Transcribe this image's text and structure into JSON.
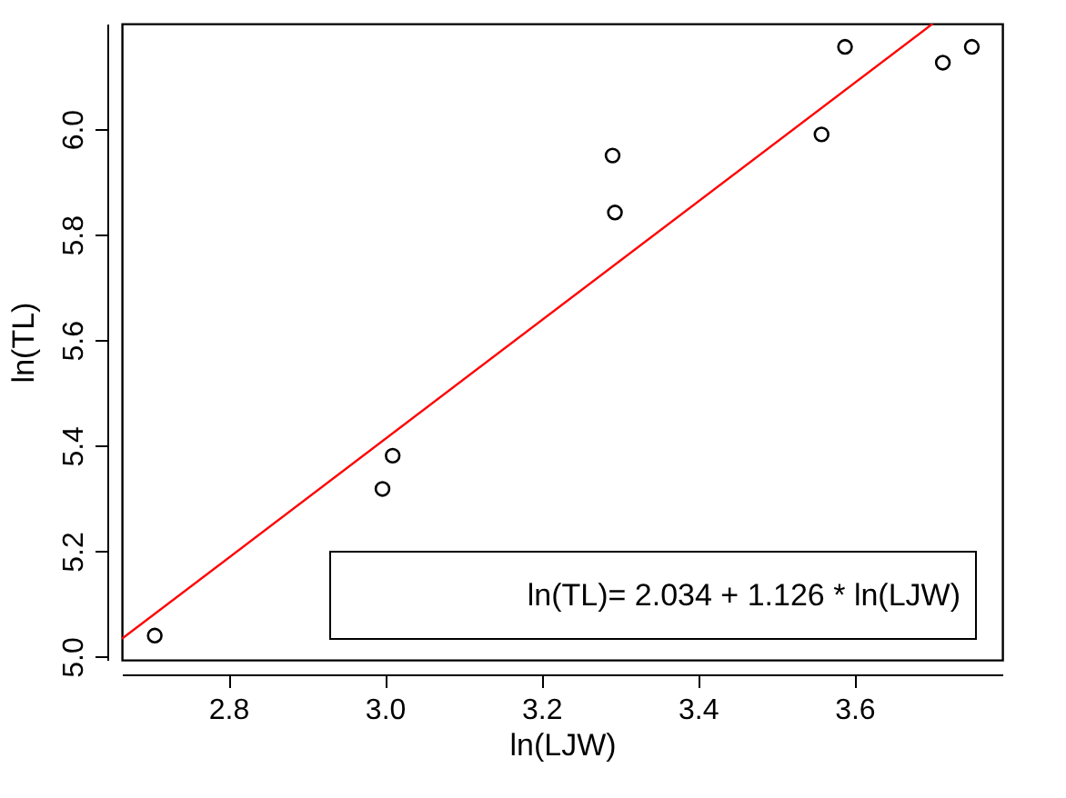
{
  "chart_data": {
    "type": "scatter",
    "xlabel": "ln(LJW)",
    "ylabel": "ln(TL)",
    "x": [
      2.706,
      2.997,
      3.01,
      3.291,
      3.294,
      3.558,
      3.588,
      3.713,
      3.75
    ],
    "series": [
      {
        "type": "scatter",
        "color": "#000000",
        "marker": "circle",
        "values": [
          5.04,
          5.318,
          5.381,
          5.95,
          5.842,
          5.99,
          6.156,
          6.126,
          6.156
        ]
      },
      {
        "type": "line",
        "color": "#ff0000",
        "line_style": "solid",
        "x": [
          2.664,
          3.7
        ],
        "values": [
          5.034,
          6.2
        ]
      }
    ],
    "annotations": [
      "ln(TL)= 2.034 + 1.126 * ln(LJW)"
    ],
    "xlim": [
      2.664,
      3.789
    ],
    "ylim": [
      4.994,
      6.2
    ],
    "xticks": [
      2.8,
      {
        "value": 3,
        "label": "3.0"
      },
      3.2,
      3.4,
      3.6
    ],
    "yticks": [
      {
        "value": 5,
        "label": "5.0"
      },
      5.2,
      5.4,
      5.6,
      5.8,
      {
        "value": 6,
        "label": "6.0"
      }
    ],
    "grid": false
  }
}
